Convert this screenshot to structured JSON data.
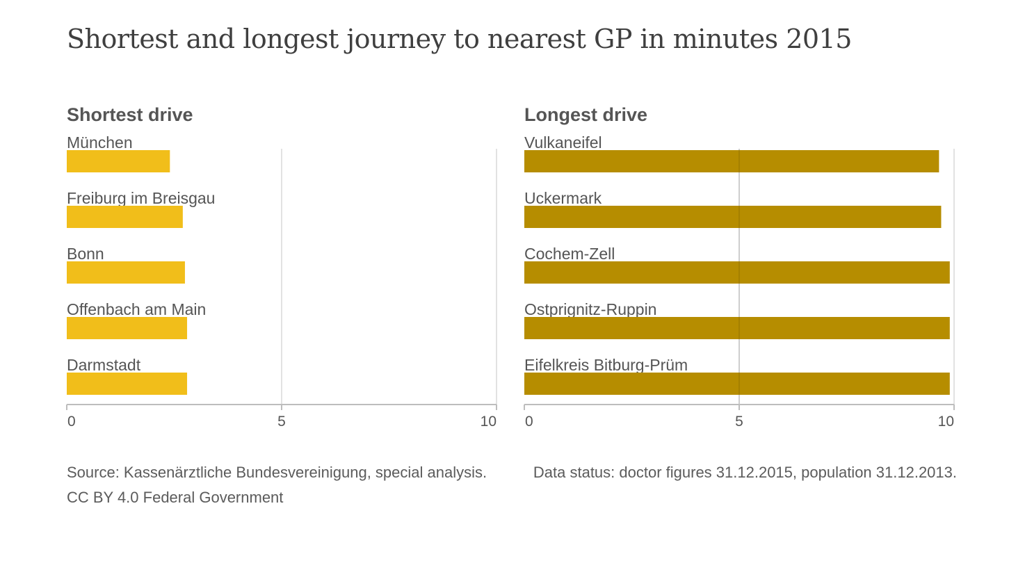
{
  "title": "Shortest and longest journey to nearest GP in minutes 2015",
  "colors": {
    "shortest": "#f1be1a",
    "longest": "#b68d00",
    "grid": "#d9d9d9",
    "axis": "#bdbdbd"
  },
  "chart_data": [
    {
      "type": "bar",
      "orientation": "horizontal",
      "title": "Shortest drive",
      "categories": [
        "München",
        "Freiburg im Breisgau",
        "Bonn",
        "Offenbach am Main",
        "Darmstadt"
      ],
      "values": [
        2.4,
        2.7,
        2.75,
        2.8,
        2.8
      ],
      "xlim": [
        0,
        10
      ],
      "xticks": [
        "0",
        "5",
        "10"
      ],
      "grid": true
    },
    {
      "type": "bar",
      "orientation": "horizontal",
      "title": "Longest drive",
      "categories": [
        "Vulkaneifel",
        "Uckermark",
        "Cochem-Zell",
        "Ostprignitz-Ruppin",
        "Eifelkreis Bitburg-Prüm"
      ],
      "values": [
        9.65,
        9.7,
        9.9,
        9.9,
        9.9
      ],
      "xlim": [
        0,
        10
      ],
      "xticks": [
        "0",
        "5",
        "10"
      ],
      "grid": true
    }
  ],
  "footer": {
    "source": "Source: Kassenärztliche Bundesvereinigung, special analysis.",
    "license": "CC BY 4.0 Federal Government",
    "status": "Data status: doctor figures 31.12.2015, population 31.12.2013."
  }
}
